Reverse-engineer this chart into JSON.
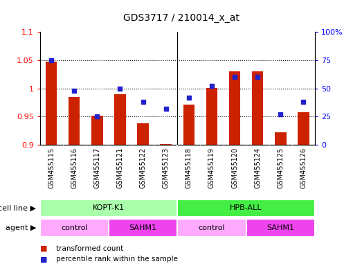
{
  "title": "GDS3717 / 210014_x_at",
  "samples": [
    "GSM455115",
    "GSM455116",
    "GSM455117",
    "GSM455121",
    "GSM455122",
    "GSM455123",
    "GSM455118",
    "GSM455119",
    "GSM455120",
    "GSM455124",
    "GSM455125",
    "GSM455126"
  ],
  "red_values": [
    1.048,
    0.985,
    0.952,
    0.99,
    0.938,
    0.902,
    0.972,
    1.001,
    1.03,
    1.03,
    0.922,
    0.958
  ],
  "blue_values": [
    75,
    48,
    25,
    50,
    38,
    32,
    42,
    52,
    60,
    60,
    27,
    38
  ],
  "ylim_left": [
    0.9,
    1.1
  ],
  "ylim_right": [
    0,
    100
  ],
  "yticks_left": [
    0.9,
    0.95,
    1.0,
    1.05,
    1.1
  ],
  "yticks_right": [
    0,
    25,
    50,
    75,
    100
  ],
  "ytick_labels_left": [
    "0.9",
    "0.95",
    "1",
    "1.05",
    "1.1"
  ],
  "ytick_labels_right": [
    "0",
    "25",
    "50",
    "75",
    "100%"
  ],
  "cell_line_groups": [
    {
      "label": "KOPT-K1",
      "start": 0,
      "end": 6,
      "color": "#aaffaa"
    },
    {
      "label": "HPB-ALL",
      "start": 6,
      "end": 12,
      "color": "#44ee44"
    }
  ],
  "agent_groups": [
    {
      "label": "control",
      "start": 0,
      "end": 3,
      "color": "#ffaaff"
    },
    {
      "label": "SAHM1",
      "start": 3,
      "end": 6,
      "color": "#ee44ee"
    },
    {
      "label": "control",
      "start": 6,
      "end": 9,
      "color": "#ffaaff"
    },
    {
      "label": "SAHM1",
      "start": 9,
      "end": 12,
      "color": "#ee44ee"
    }
  ],
  "bar_color": "#cc2200",
  "dot_color": "#2222cc",
  "bar_width": 0.5,
  "legend_red": "transformed count",
  "legend_blue": "percentile rank within the sample",
  "cell_line_label": "cell line",
  "agent_label": "agent",
  "tick_bg_color": "#d8d8d8",
  "separator_col": 5.5
}
